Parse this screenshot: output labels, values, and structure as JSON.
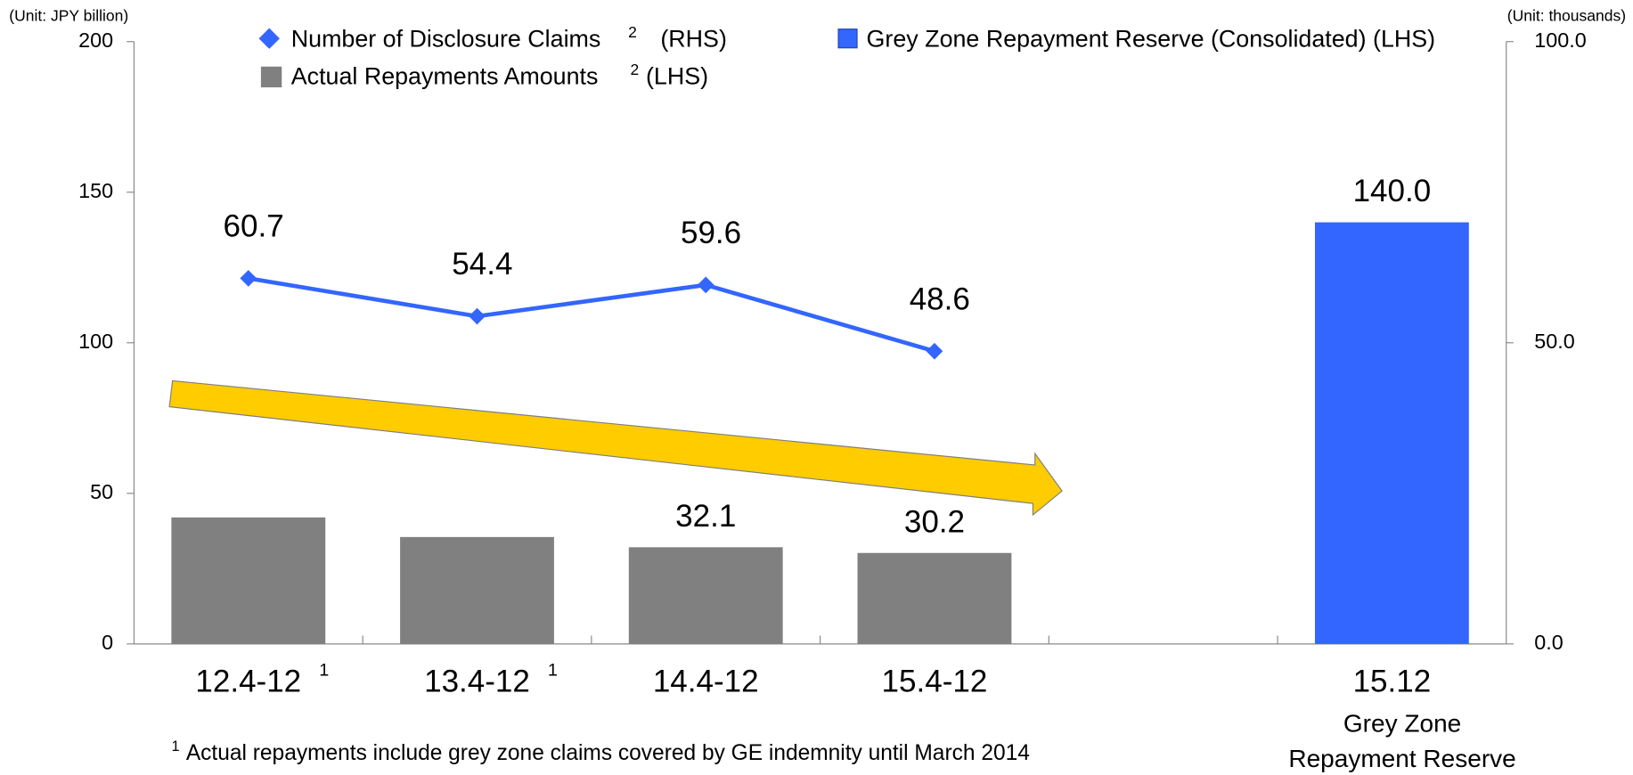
{
  "chart_data": {
    "type": "bar_line",
    "unit_left": "(Unit: JPY billion)",
    "unit_right": "(Unit: thousands)",
    "categories": [
      "12.4-12",
      "13.4-12",
      "14.4-12",
      "15.4-12",
      null,
      "15.12"
    ],
    "category_notes": [
      "1",
      "1",
      null,
      null,
      null,
      null
    ],
    "category_sublabel": [
      "Grey Zone",
      "Repayment Reserve"
    ],
    "ylim": [
      0,
      200
    ],
    "yticks": [
      0,
      50,
      100,
      150,
      200
    ],
    "y2lim": [
      0,
      100
    ],
    "y2ticks": [
      {
        "value": 0,
        "label": "0.0"
      },
      {
        "value": 50,
        "label": "50.0"
      },
      {
        "value": 100,
        "label": "100.0"
      }
    ],
    "series": [
      {
        "name": "Number of Disclosure Claims",
        "note": "2",
        "side": "(RHS)",
        "type": "line",
        "axis": "y2",
        "color": "#3366ff",
        "values": [
          60.7,
          54.4,
          59.6,
          48.6,
          null,
          null
        ],
        "value_labels": [
          "60.7",
          "54.4",
          "59.6",
          "48.6",
          null,
          null
        ]
      },
      {
        "name": "Actual Repayments Amounts",
        "note": "2",
        "side": "(LHS)",
        "type": "bar",
        "color": "#808080",
        "values": [
          42,
          35.5,
          32.1,
          30.2,
          null,
          null
        ],
        "value_labels": [
          null,
          null,
          "32.1",
          "30.2",
          null,
          null
        ]
      },
      {
        "name": "Grey Zone Repayment Reserve (Consolidated) (LHS)",
        "type": "bar",
        "color": "#3366ff",
        "values": [
          null,
          null,
          null,
          null,
          null,
          140
        ],
        "value_labels": [
          null,
          null,
          null,
          null,
          null,
          "140.0"
        ]
      }
    ],
    "footnote_marker": "1",
    "footnote": "Actual repayments include grey zone claims covered by GE indemnity until March 2014"
  }
}
